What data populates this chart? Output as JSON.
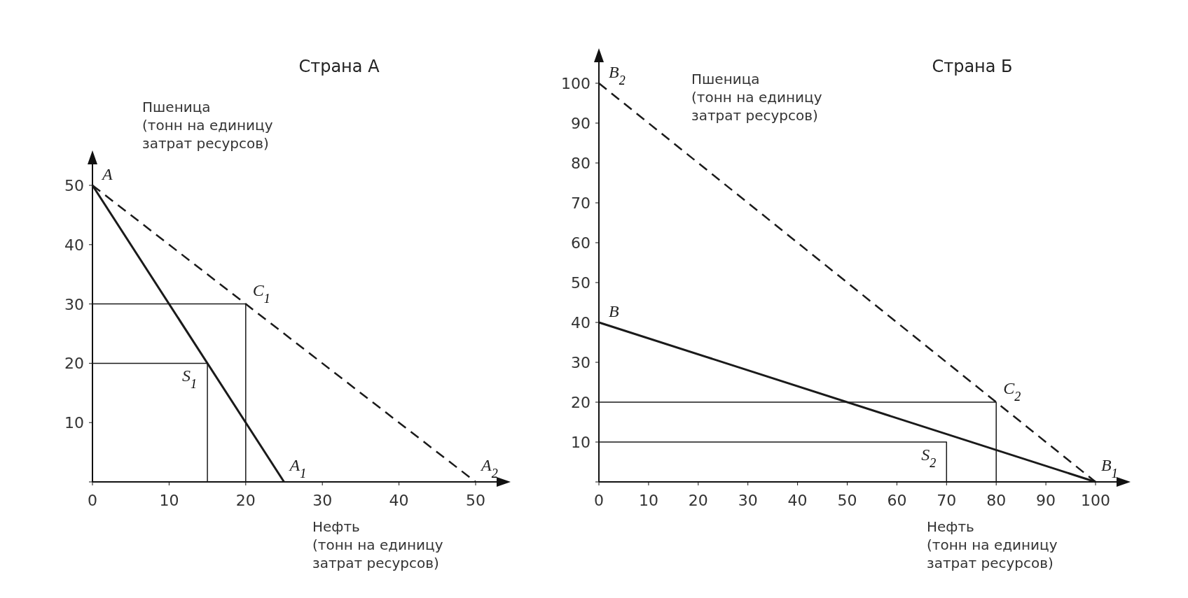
{
  "chart_data": [
    {
      "type": "line",
      "title": "Страна А",
      "ylabel": "Пшеница\n(тонн на единицу\nзатрат ресурсов)",
      "xlabel": "Нефть\n(тонн на единицу\nзатрат ресурсов)",
      "xlim": [
        0,
        50
      ],
      "ylim": [
        0,
        50
      ],
      "xticks": [
        0,
        10,
        20,
        30,
        40,
        50
      ],
      "yticks": [
        {
          "value": 0,
          "label": null
        },
        10,
        20,
        30,
        40,
        50
      ],
      "grid": false,
      "marker": "none",
      "series": [
        {
          "x": [
            0,
            25
          ],
          "values": [
            50,
            0
          ],
          "color": "#1a1a1a",
          "line_style": "solid"
        },
        {
          "x": [
            0,
            50
          ],
          "values": [
            50,
            0
          ],
          "color": "#1a1a1a",
          "line_style": "dashed"
        },
        {
          "x": [
            0,
            20,
            20
          ],
          "values": [
            30,
            30,
            0
          ],
          "color": "#1a1a1a",
          "line_style": "solid"
        },
        {
          "x": [
            0,
            15,
            15
          ],
          "values": [
            20,
            20,
            0
          ],
          "color": "#1a1a1a",
          "line_style": "solid"
        }
      ],
      "annotations": [
        {
          "text": "A",
          "x": 0,
          "y": 50
        },
        {
          "text": "C$_{1}$",
          "x": 20,
          "y": 30
        },
        {
          "text": "S$_{1}$",
          "x": 15,
          "y": 20
        },
        {
          "text": "A$_{1}$",
          "x": 25,
          "y": 0
        },
        {
          "text": "A$_{2}$",
          "x": 50,
          "y": 0
        }
      ]
    },
    {
      "type": "line",
      "title": "Страна Б",
      "ylabel": "Пшеница\n(тонн на единицу\nзатрат ресурсов)",
      "xlabel": "Нефть\n(тонн на единицу\nзатрат ресурсов)",
      "xlim": [
        0,
        100
      ],
      "ylim": [
        0,
        100
      ],
      "xticks": [
        0,
        10,
        20,
        30,
        40,
        50,
        60,
        70,
        80,
        90,
        100
      ],
      "yticks": [
        {
          "value": 0,
          "label": null
        },
        10,
        20,
        30,
        40,
        50,
        60,
        70,
        80,
        90,
        100
      ],
      "grid": false,
      "marker": "none",
      "series": [
        {
          "x": [
            0,
            100
          ],
          "values": [
            40,
            0
          ],
          "color": "#1a1a1a",
          "line_style": "solid"
        },
        {
          "x": [
            0,
            100
          ],
          "values": [
            100,
            0
          ],
          "color": "#1a1a1a",
          "line_style": "dashed"
        },
        {
          "x": [
            0,
            80,
            80
          ],
          "values": [
            20,
            20,
            0
          ],
          "color": "#1a1a1a",
          "line_style": "solid"
        },
        {
          "x": [
            0,
            70,
            70
          ],
          "values": [
            10,
            10,
            0
          ],
          "color": "#1a1a1a",
          "line_style": "solid"
        }
      ],
      "annotations": [
        {
          "text": "B",
          "x": 0,
          "y": 40
        },
        {
          "text": "B$_{2}$",
          "x": 0,
          "y": 100
        },
        {
          "text": "C$_{2}$",
          "x": 80,
          "y": 20
        },
        {
          "text": "S$_{2}$",
          "x": 70,
          "y": 10
        },
        {
          "text": "B$_{1}$",
          "x": 100,
          "y": 0
        }
      ]
    }
  ]
}
